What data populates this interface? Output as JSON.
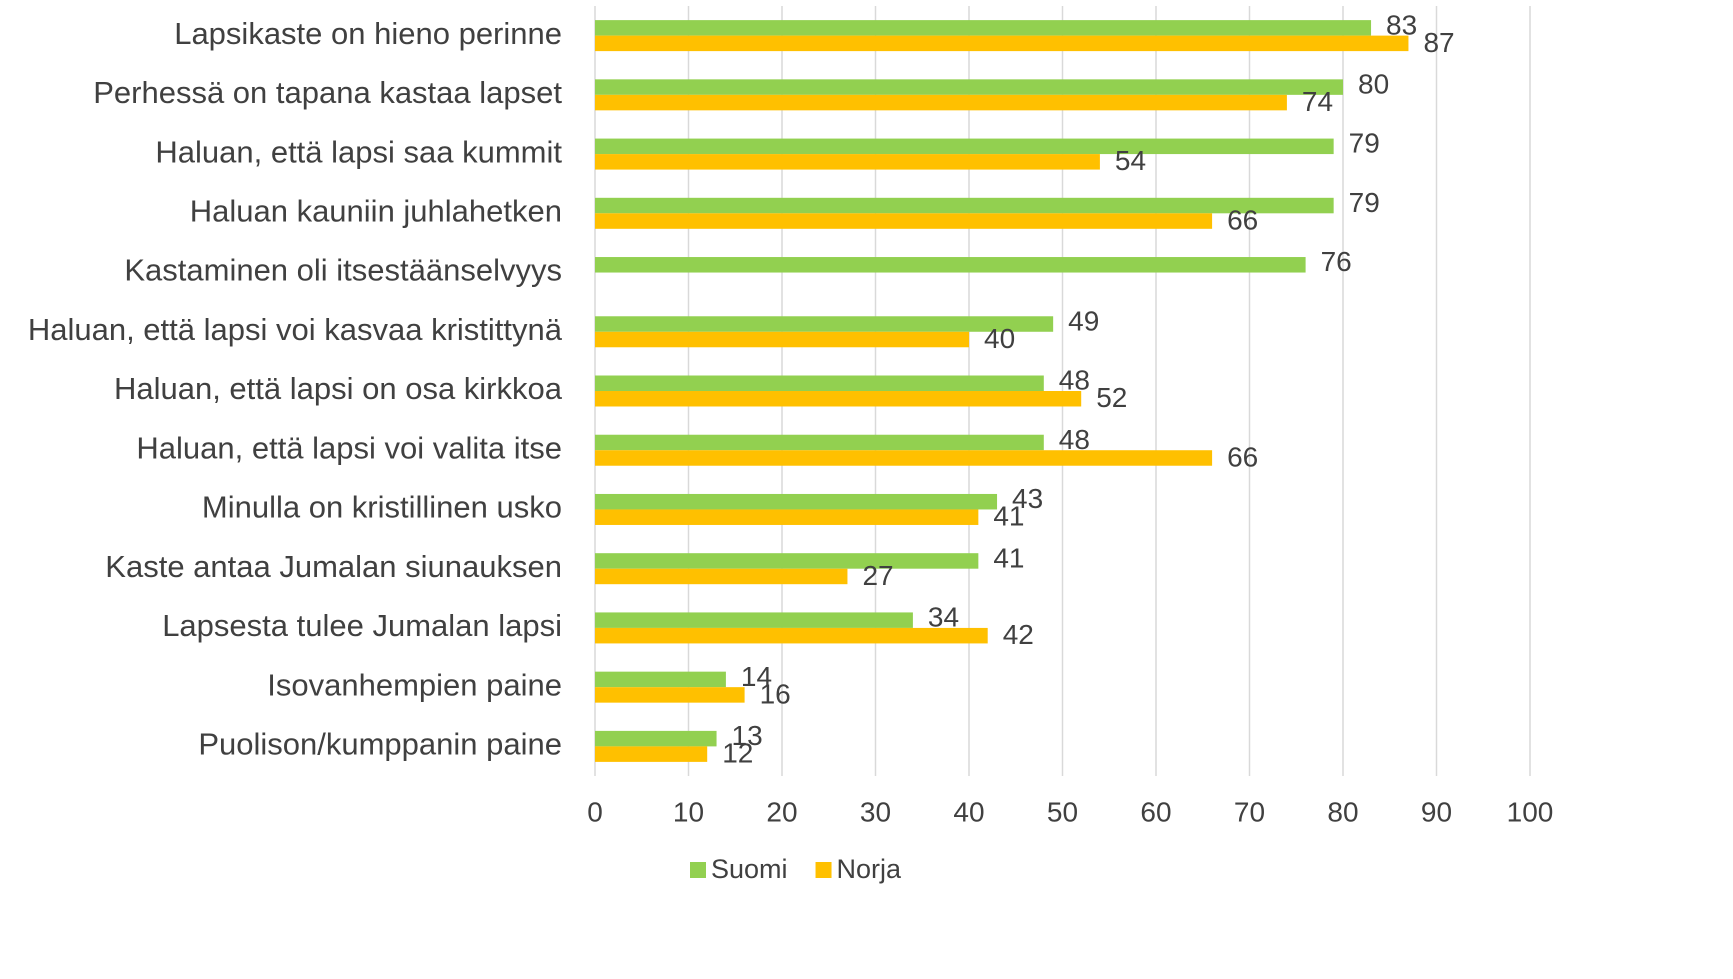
{
  "chart_data": {
    "type": "bar",
    "orientation": "horizontal",
    "categories": [
      "Lapsikaste on hieno perinne",
      "Perhessä on tapana kastaa lapset",
      "Haluan, että lapsi saa kummit",
      "Haluan kauniin juhlahetken",
      "Kastaminen oli itsestäänselvyys",
      "Haluan, että lapsi voi kasvaa kristittynä",
      "Haluan, että lapsi on osa kirkkoa",
      "Haluan, että lapsi voi valita itse",
      "Minulla on kristillinen usko",
      "Kaste antaa Jumalan siunauksen",
      "Lapsesta tulee Jumalan lapsi",
      "Isovanhempien paine",
      "Puolison/kumppanin paine"
    ],
    "series": [
      {
        "name": "Suomi",
        "color": "#92d050",
        "values": [
          83,
          80,
          79,
          79,
          76,
          49,
          48,
          48,
          43,
          41,
          34,
          14,
          13
        ]
      },
      {
        "name": "Norja",
        "color": "#ffc000",
        "values": [
          87,
          74,
          54,
          66,
          null,
          40,
          52,
          66,
          41,
          27,
          42,
          16,
          12
        ]
      }
    ],
    "xlim": [
      0,
      100
    ],
    "xticks": [
      0,
      10,
      20,
      30,
      40,
      50,
      60,
      70,
      80,
      90,
      100
    ],
    "grid": true,
    "legend": "bottom"
  }
}
